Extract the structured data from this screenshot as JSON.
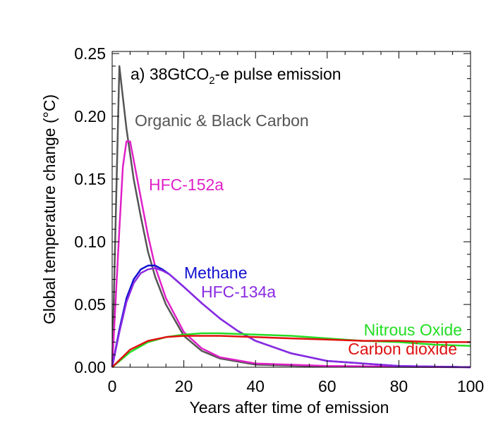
{
  "chart_data": {
    "type": "line",
    "title": "a) 38GtCO",
    "title_sub": "2",
    "title_suffix": "-e pulse emission",
    "xlabel": "Years after time of emission",
    "ylabel": "Global temperature change (°C)",
    "xlim": [
      0,
      100
    ],
    "ylim": [
      0,
      0.25
    ],
    "xticks": [
      "0",
      "20",
      "40",
      "60",
      "80",
      "100"
    ],
    "yticks": [
      "0.00",
      "0.05",
      "0.10",
      "0.15",
      "0.20",
      "0.25"
    ],
    "grid": false,
    "series": [
      {
        "name": "Organic & Black Carbon",
        "color": "#555555",
        "x": [
          0,
          1,
          2,
          3,
          4,
          5,
          6,
          8,
          10,
          12,
          15,
          20,
          25,
          30,
          40,
          60,
          100
        ],
        "y": [
          0,
          0.12,
          0.24,
          0.215,
          0.19,
          0.17,
          0.15,
          0.12,
          0.092,
          0.072,
          0.05,
          0.025,
          0.013,
          0.007,
          0.002,
          0.0005,
          0
        ]
      },
      {
        "name": "HFC-152a",
        "color": "#e020c8",
        "x": [
          0,
          2,
          3,
          4,
          5,
          6,
          8,
          10,
          12,
          15,
          20,
          25,
          30,
          40,
          60,
          100
        ],
        "y": [
          0,
          0.11,
          0.16,
          0.18,
          0.18,
          0.165,
          0.135,
          0.105,
          0.08,
          0.055,
          0.028,
          0.015,
          0.008,
          0.003,
          0.001,
          0
        ]
      },
      {
        "name": "Methane",
        "color": "#1010d0",
        "x": [
          0,
          2,
          4,
          6,
          8,
          10,
          12,
          14,
          16,
          20,
          25,
          30,
          35,
          40,
          50,
          60,
          70,
          80,
          100
        ],
        "y": [
          0,
          0.03,
          0.055,
          0.07,
          0.078,
          0.081,
          0.081,
          0.078,
          0.074,
          0.064,
          0.051,
          0.039,
          0.029,
          0.021,
          0.011,
          0.005,
          0.003,
          0.001,
          0
        ]
      },
      {
        "name": "HFC-134a",
        "color": "#8a2be2",
        "x": [
          0,
          2,
          4,
          6,
          8,
          10,
          12,
          14,
          16,
          20,
          25,
          30,
          35,
          40,
          50,
          60,
          70,
          80,
          100
        ],
        "y": [
          0,
          0.028,
          0.052,
          0.067,
          0.075,
          0.078,
          0.079,
          0.077,
          0.074,
          0.064,
          0.051,
          0.039,
          0.029,
          0.021,
          0.011,
          0.005,
          0.003,
          0.001,
          0
        ]
      },
      {
        "name": "Nitrous Oxide",
        "color": "#22dd22",
        "x": [
          0,
          5,
          10,
          15,
          20,
          25,
          30,
          40,
          50,
          60,
          70,
          80,
          90,
          100
        ],
        "y": [
          0,
          0.012,
          0.02,
          0.024,
          0.026,
          0.027,
          0.027,
          0.026,
          0.025,
          0.023,
          0.021,
          0.02,
          0.018,
          0.017
        ]
      },
      {
        "name": "Carbon dioxide",
        "color": "#e01010",
        "x": [
          0,
          5,
          10,
          15,
          20,
          30,
          40,
          50,
          60,
          70,
          80,
          90,
          100
        ],
        "y": [
          0,
          0.014,
          0.021,
          0.024,
          0.025,
          0.025,
          0.024,
          0.023,
          0.022,
          0.021,
          0.021,
          0.02,
          0.02
        ]
      }
    ]
  }
}
